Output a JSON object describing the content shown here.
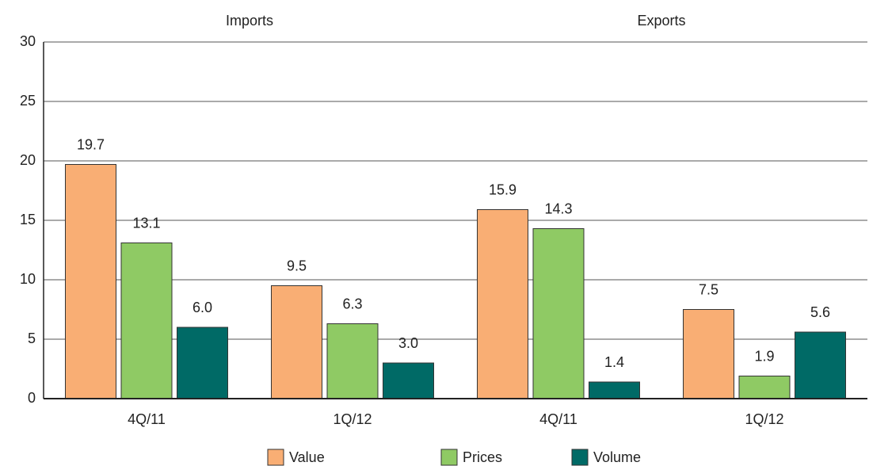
{
  "chart_data": {
    "type": "bar",
    "group_labels": [
      "Imports",
      "Exports"
    ],
    "categories": [
      "4Q/11",
      "1Q/12",
      "4Q/11",
      "1Q/12"
    ],
    "series": [
      {
        "name": "Value",
        "color": "#f9ae74",
        "values": [
          19.7,
          9.5,
          15.9,
          7.5
        ],
        "value_labels": [
          "19.7",
          "9.5",
          "15.9",
          "7.5"
        ]
      },
      {
        "name": "Prices",
        "color": "#8fca64",
        "values": [
          13.1,
          6.3,
          14.3,
          1.9
        ],
        "value_labels": [
          "13.1",
          "6.3",
          "14.3",
          "1.9"
        ]
      },
      {
        "name": "Volume",
        "color": "#006a66",
        "values": [
          6.0,
          3.0,
          1.4,
          5.6
        ],
        "value_labels": [
          "6.0",
          "3.0",
          "1.4",
          "5.6"
        ]
      }
    ],
    "ylim": [
      0,
      30
    ],
    "yticks": [
      0,
      5,
      10,
      15,
      20,
      25,
      30
    ],
    "grid": true
  }
}
